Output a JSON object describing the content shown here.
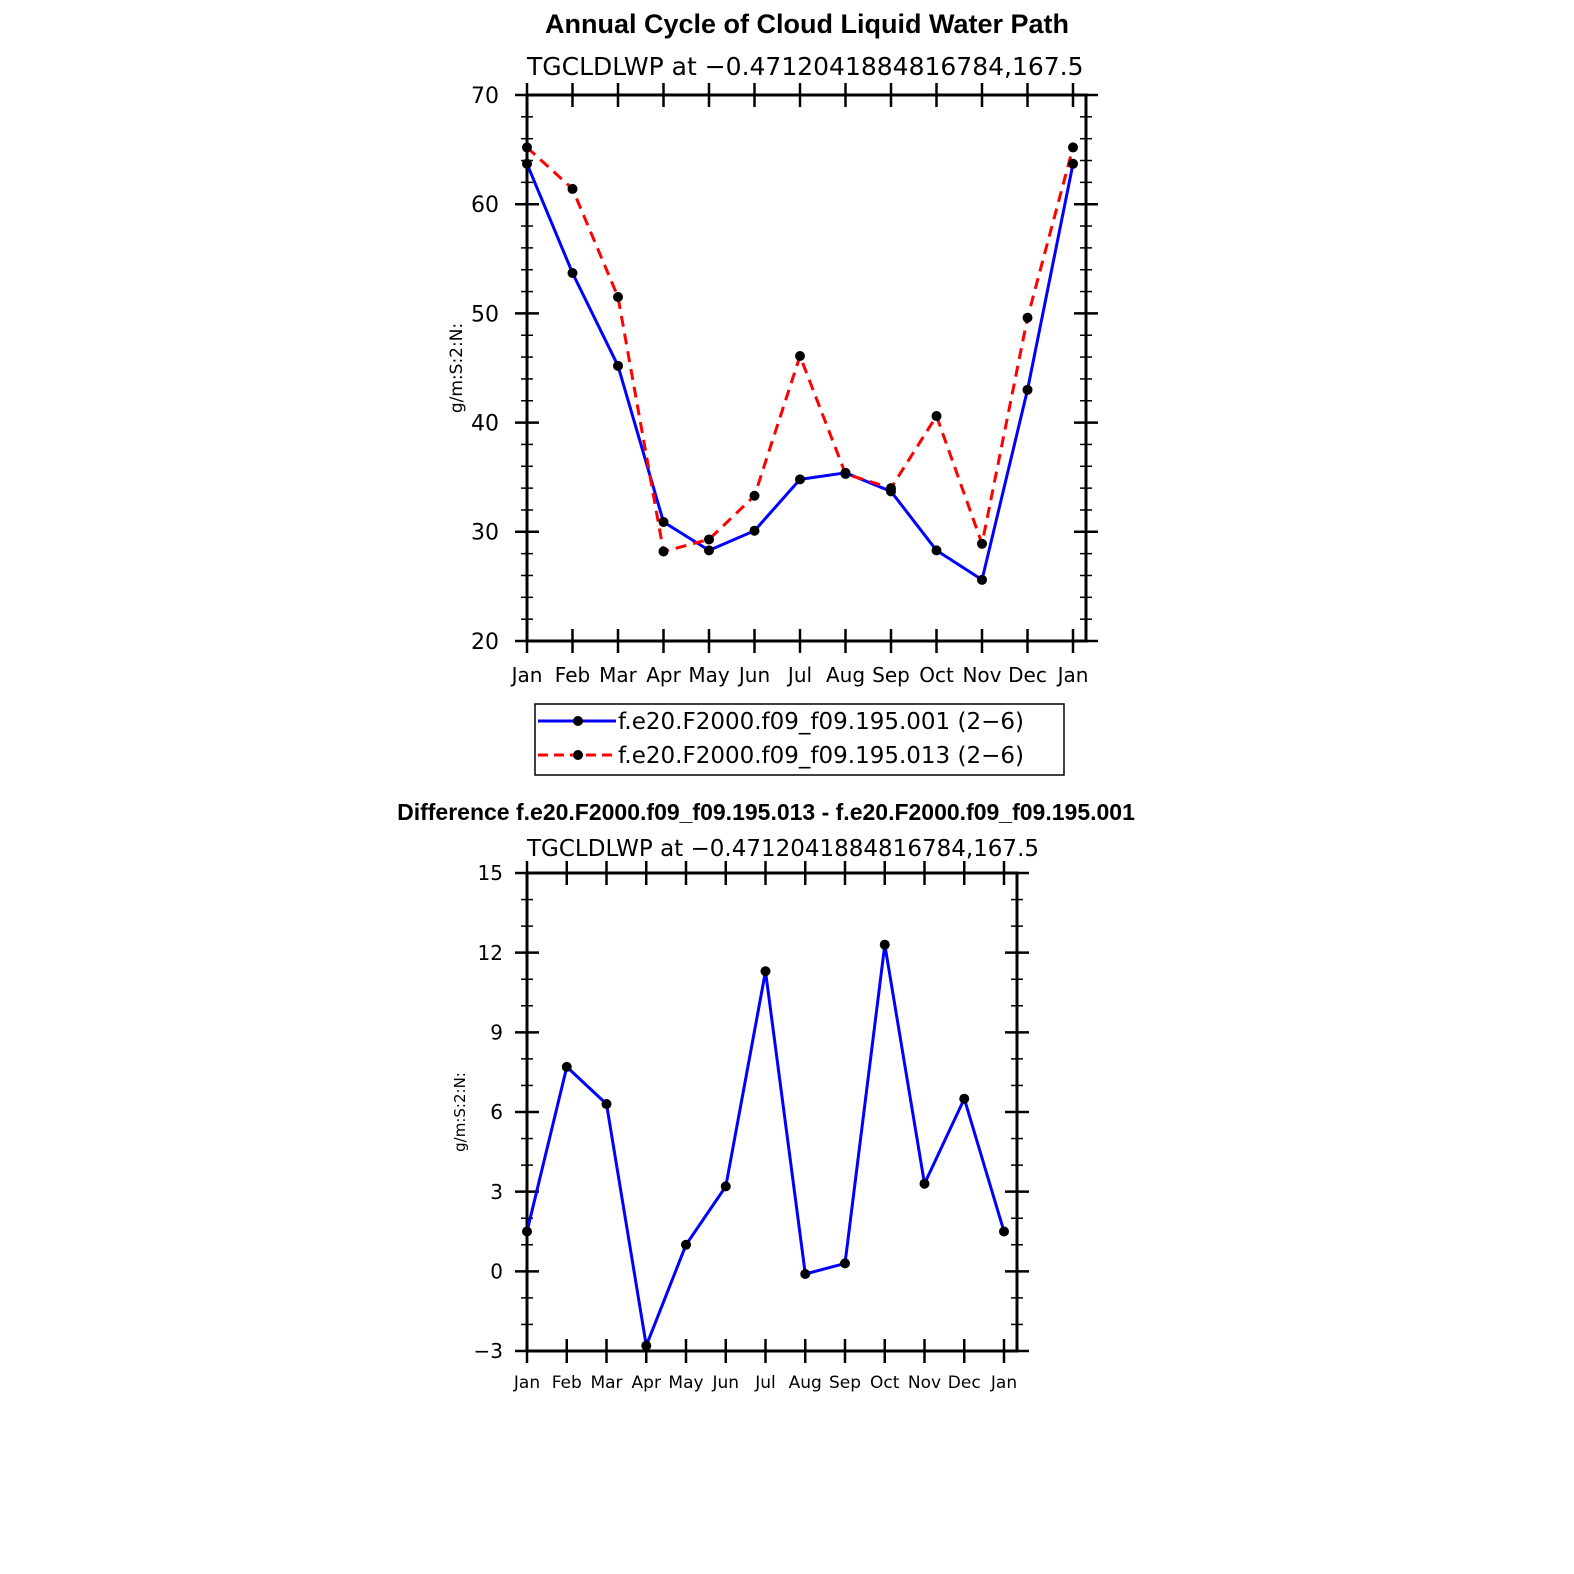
{
  "chart_data": [
    {
      "type": "line",
      "title": "Annual Cycle of Cloud Liquid Water Path",
      "subtitle": "TGCLDLWP  at  −0.4712041884816784,167.5",
      "ylabel": "g/m:S:2:N:",
      "xlabel": "",
      "categories": [
        "Jan",
        "Feb",
        "Mar",
        "Apr",
        "May",
        "Jun",
        "Jul",
        "Aug",
        "Sep",
        "Oct",
        "Nov",
        "Dec",
        "Jan"
      ],
      "ylim": [
        20,
        70
      ],
      "yticks": [
        20,
        30,
        40,
        50,
        60,
        70
      ],
      "grid": false,
      "legend_position": "bottom",
      "series": [
        {
          "name": "f.e20.F2000.f09_f09.195.001 (2−6)",
          "color": "#0000ff",
          "dash": "solid",
          "values": [
            63.7,
            53.7,
            45.2,
            30.9,
            28.3,
            30.1,
            34.8,
            35.4,
            33.7,
            28.3,
            25.6,
            43.0,
            63.7
          ]
        },
        {
          "name": "f.e20.F2000.f09_f09.195.013 (2−6)",
          "color": "#ff0000",
          "dash": "dashed",
          "values": [
            65.2,
            61.4,
            51.5,
            28.2,
            29.3,
            33.3,
            46.1,
            35.3,
            34.0,
            40.6,
            28.9,
            49.6,
            65.2
          ]
        }
      ]
    },
    {
      "type": "line",
      "title": "Difference f.e20.F2000.f09_f09.195.013 - f.e20.F2000.f09_f09.195.001",
      "subtitle": "TGCLDLWP  at  −0.4712041884816784,167.5",
      "ylabel": "g/m:S:2:N:",
      "xlabel": "",
      "categories": [
        "Jan",
        "Feb",
        "Mar",
        "Apr",
        "May",
        "Jun",
        "Jul",
        "Aug",
        "Sep",
        "Oct",
        "Nov",
        "Dec",
        "Jan"
      ],
      "ylim": [
        -3,
        15
      ],
      "yticks": [
        -3,
        0,
        3,
        6,
        9,
        12,
        15
      ],
      "ytick_labels": [
        "−3",
        "0",
        "3",
        "6",
        "9",
        "12",
        "15"
      ],
      "grid": false,
      "series": [
        {
          "color": "#0000ff",
          "dash": "solid",
          "values": [
            1.5,
            7.7,
            6.3,
            -2.8,
            1.0,
            3.2,
            11.3,
            -0.1,
            0.3,
            12.3,
            3.3,
            6.5,
            1.5
          ]
        }
      ]
    }
  ]
}
